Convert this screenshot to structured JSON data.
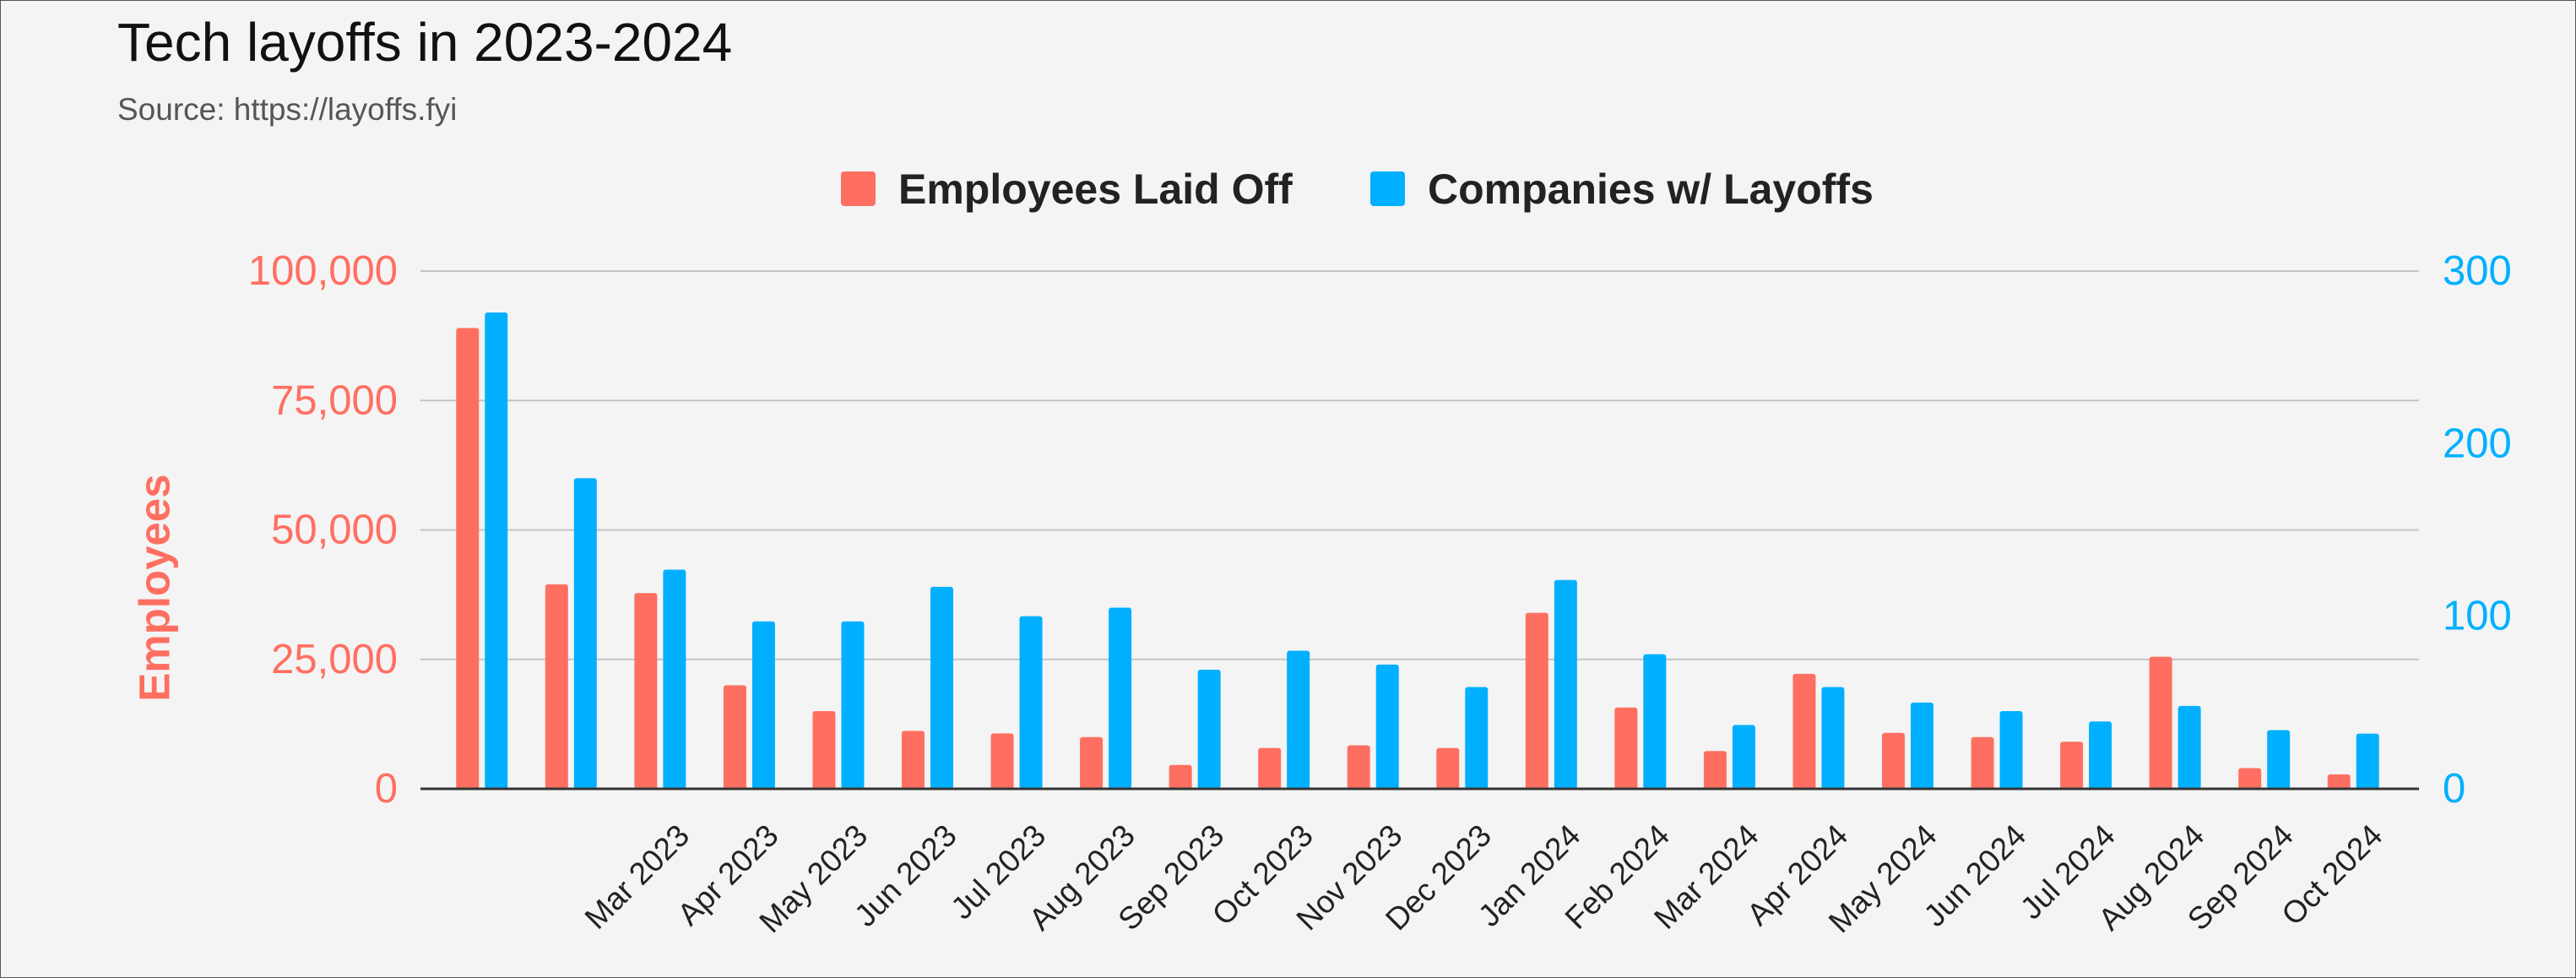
{
  "chart_data": {
    "type": "bar",
    "title": "Tech layoffs in 2023-2024",
    "subtitle": "Source: https://layoffs.fyi",
    "categories": [
      "",
      "",
      "Mar 2023",
      "Apr 2023",
      "May 2023",
      "Jun 2023",
      "Jul 2023",
      "Aug 2023",
      "Sep 2023",
      "Oct 2023",
      "Nov 2023",
      "Dec 2023",
      "Jan 2024",
      "Feb 2024",
      "Mar 2024",
      "Apr 2024",
      "May 2024",
      "Jun 2024",
      "Jul 2024",
      "Aug 2024",
      "Sep 2024",
      "Oct 2024"
    ],
    "series": [
      {
        "name": "Employees Laid Off",
        "axis": "left",
        "color": "#ff6f61",
        "values": [
          89000,
          39500,
          37800,
          20000,
          15000,
          11200,
          10700,
          10000,
          4600,
          7900,
          8400,
          7900,
          34000,
          15700,
          7300,
          22200,
          10800,
          10000,
          9100,
          25500,
          4000,
          2800
        ]
      },
      {
        "name": "Companies w/ Layoffs",
        "axis": "right",
        "color": "#00b0ff",
        "values": [
          276,
          180,
          127,
          97,
          97,
          117,
          100,
          105,
          69,
          80,
          72,
          59,
          121,
          78,
          37,
          59,
          50,
          45,
          39,
          48,
          34,
          32
        ]
      }
    ],
    "y_left": {
      "label": "Employees",
      "range": [
        0,
        100000
      ],
      "ticks": [
        0,
        25000,
        50000,
        75000,
        100000
      ],
      "tick_labels": [
        "0",
        "25,000",
        "50,000",
        "75,000",
        "100,000"
      ],
      "color": "#ff6f61"
    },
    "y_right": {
      "label": "",
      "range": [
        0,
        300
      ],
      "ticks": [
        0,
        100,
        200,
        300
      ],
      "tick_labels": [
        "0",
        "100",
        "200",
        "300"
      ],
      "color": "#00b0ff"
    },
    "legend": "top-center",
    "grid": true
  }
}
